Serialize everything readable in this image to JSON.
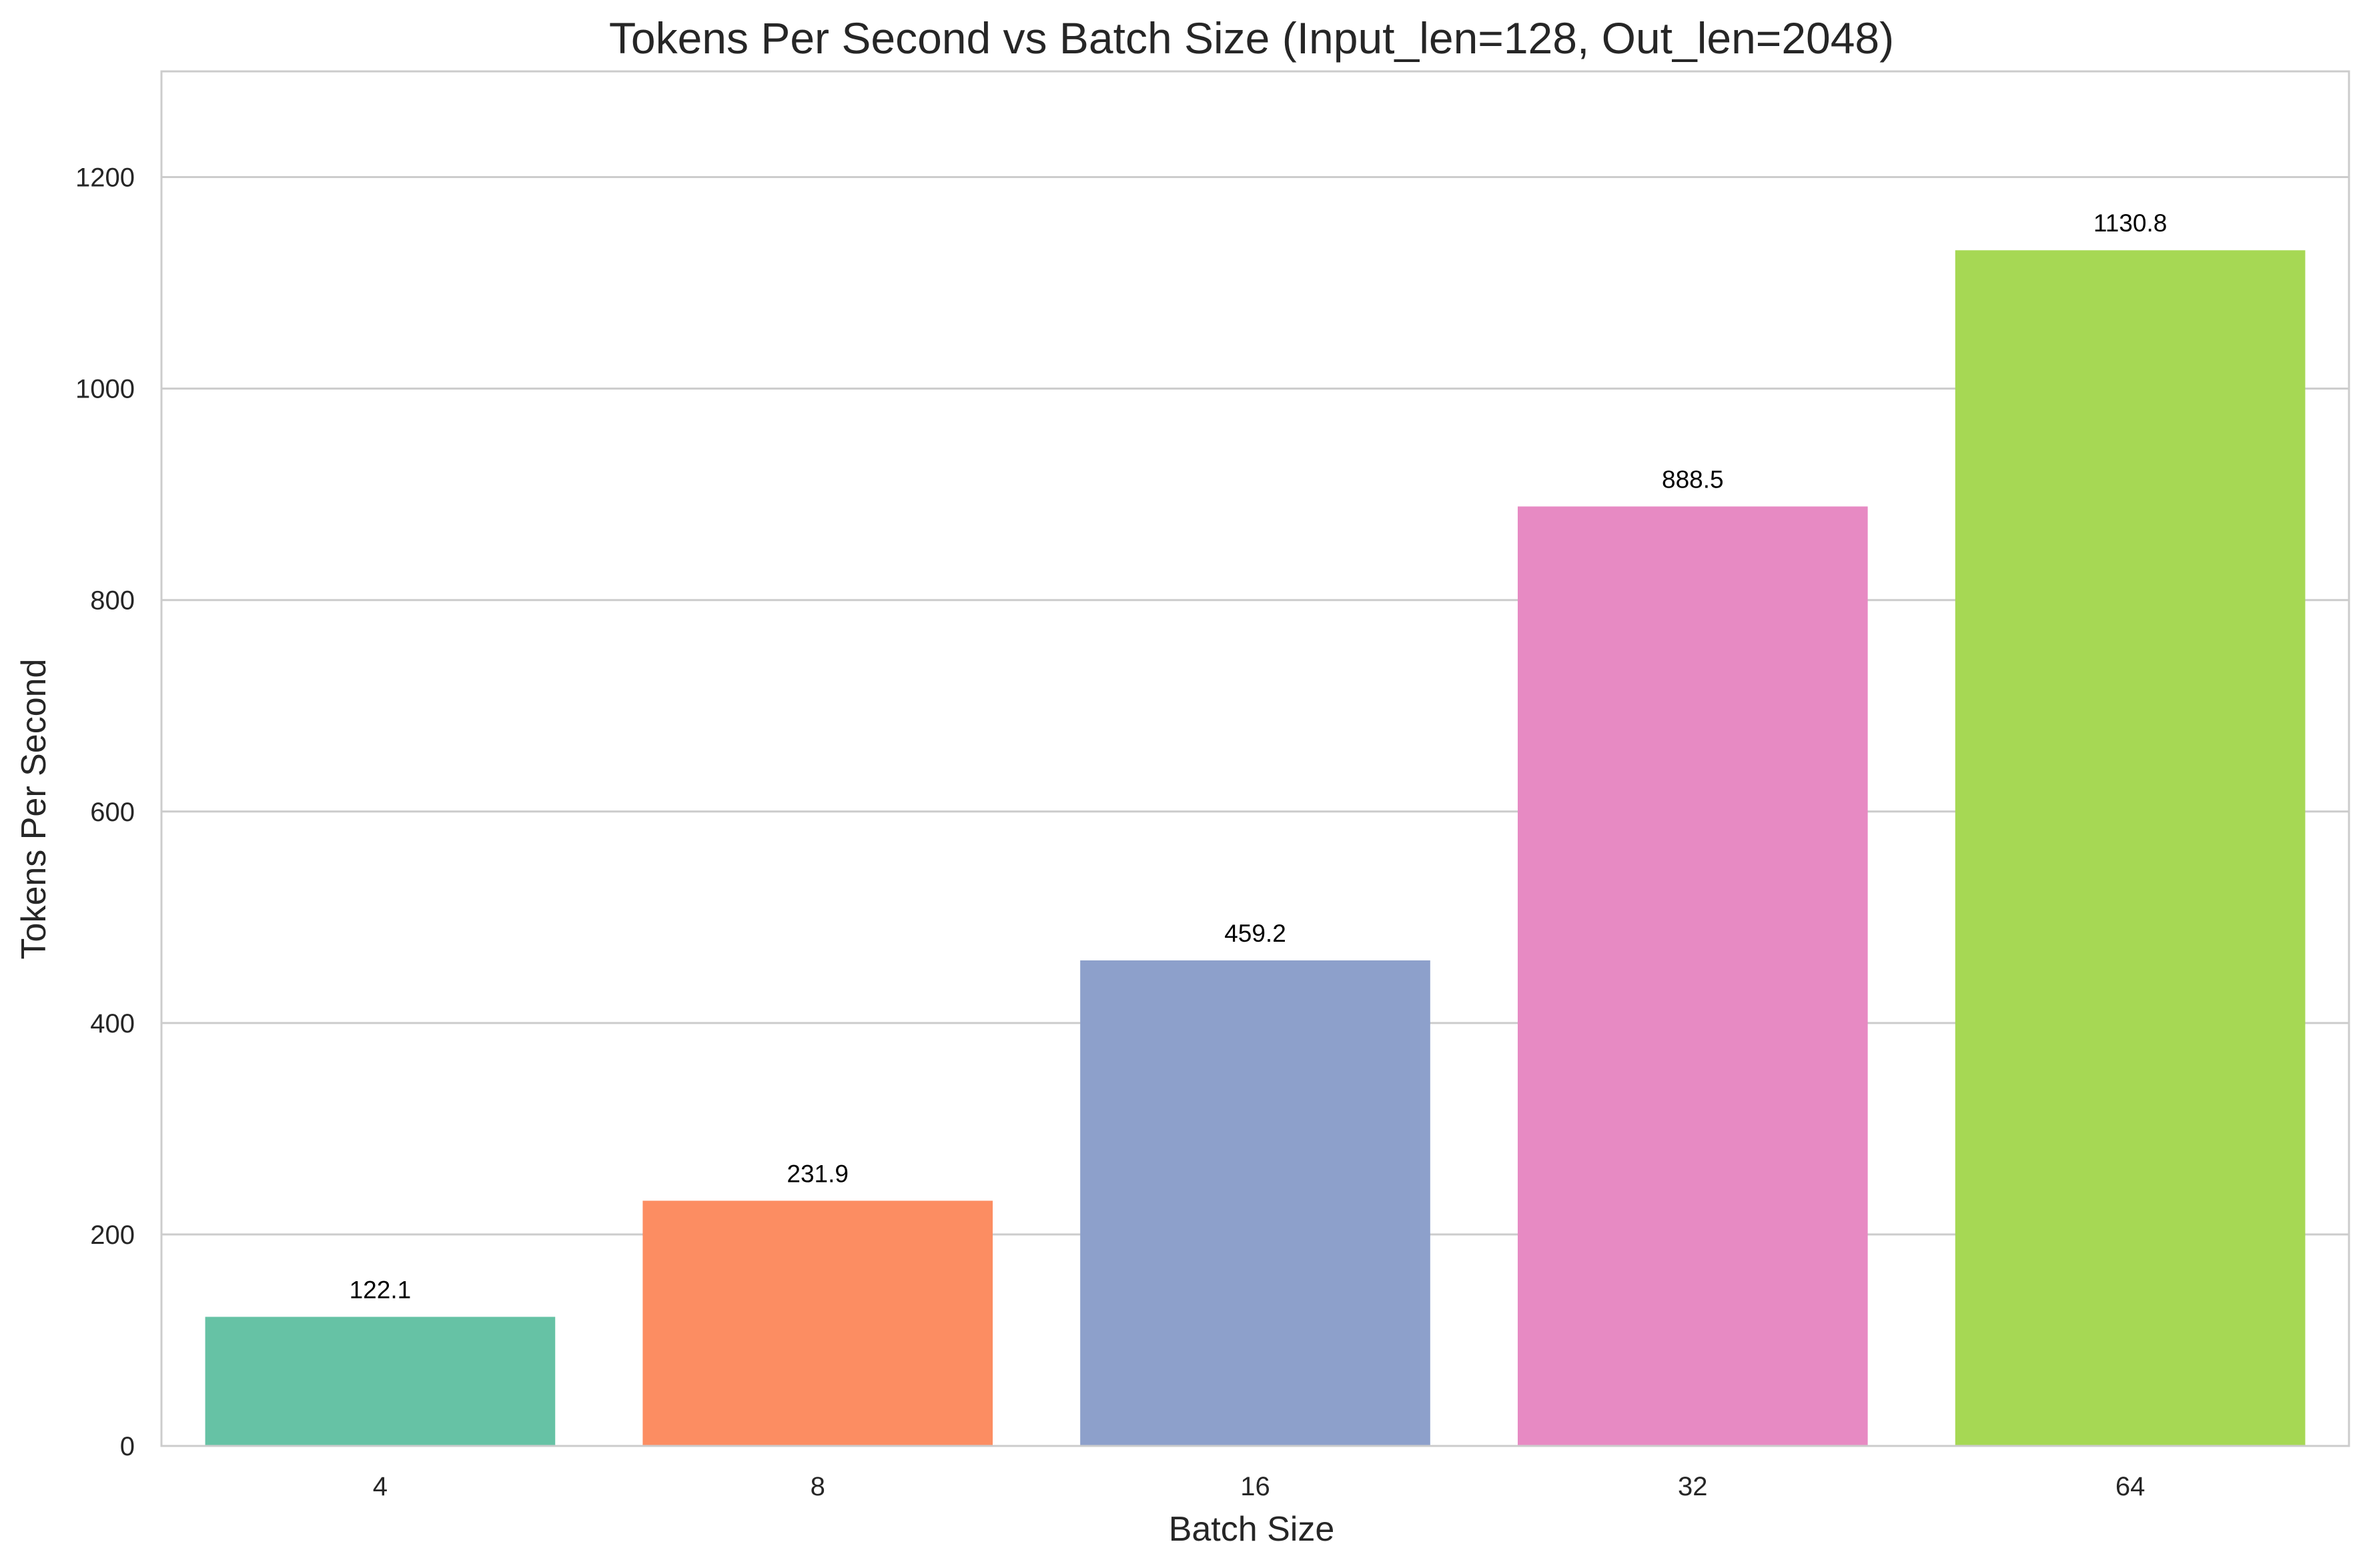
{
  "chart_data": {
    "type": "bar",
    "title": "Tokens Per Second vs Batch Size (Input_len=128, Out_len=2048)",
    "xlabel": "Batch Size",
    "ylabel": "Tokens Per Second",
    "categories": [
      "4",
      "8",
      "16",
      "32",
      "64"
    ],
    "values": [
      122.1,
      231.9,
      459.2,
      888.5,
      1130.8
    ],
    "data_labels": [
      "122.1",
      "231.9",
      "459.2",
      "888.5",
      "1130.8"
    ],
    "colors": [
      "#66c2a5",
      "#fc8d62",
      "#8da0cb",
      "#e78ac3",
      "#a6d854"
    ],
    "ylim": [
      0,
      1300
    ],
    "yticks": [
      0,
      200,
      400,
      600,
      800,
      1000,
      1200
    ],
    "ytick_labels": [
      "0",
      "200",
      "400",
      "600",
      "800",
      "1000",
      "1200"
    ],
    "grid": "horizontal",
    "legend": "none"
  }
}
